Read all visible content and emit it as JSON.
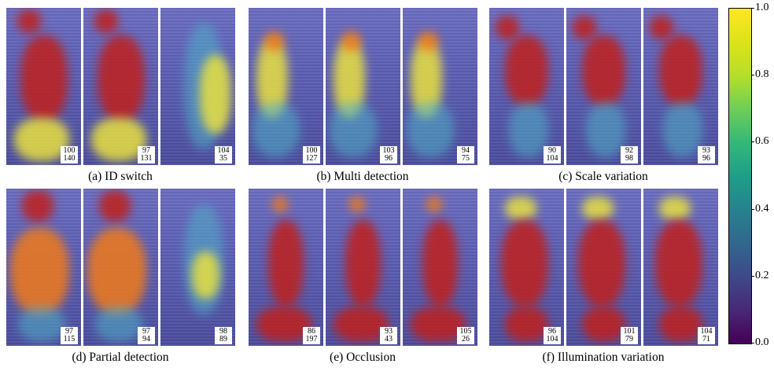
{
  "panels": [
    {
      "caption": "(a) ID switch",
      "tags": [
        {
          "a": "100",
          "b": "140"
        },
        {
          "a": "97",
          "b": "131"
        },
        {
          "a": "104",
          "b": "35"
        }
      ]
    },
    {
      "caption": "(b) Multi detection",
      "tags": [
        {
          "a": "100",
          "b": "127"
        },
        {
          "a": "103",
          "b": "96"
        },
        {
          "a": "94",
          "b": "75"
        }
      ]
    },
    {
      "caption": "(c) Scale variation",
      "tags": [
        {
          "a": "90",
          "b": "104"
        },
        {
          "a": "92",
          "b": "98"
        },
        {
          "a": "93",
          "b": "96"
        }
      ]
    },
    {
      "caption": "(d) Partial detection",
      "tags": [
        {
          "a": "97",
          "b": "115"
        },
        {
          "a": "97",
          "b": "94"
        },
        {
          "a": "98",
          "b": "89"
        }
      ]
    },
    {
      "caption": "(e) Occlusion",
      "tags": [
        {
          "a": "86",
          "b": "197"
        },
        {
          "a": "93",
          "b": "43"
        },
        {
          "a": "105",
          "b": "26"
        }
      ]
    },
    {
      "caption": "(f) Illumination variation",
      "tags": [
        {
          "a": "96",
          "b": "104"
        },
        {
          "a": "101",
          "b": "79"
        },
        {
          "a": "104",
          "b": "71"
        }
      ]
    }
  ],
  "colorbar": {
    "ticks": [
      "1.0",
      "0.8",
      "0.6",
      "0.4",
      "0.2",
      "0.0"
    ],
    "colormap": "viridis",
    "colors": [
      "#440154",
      "#3e4989",
      "#26828e",
      "#35b779",
      "#b5de2b",
      "#fde725"
    ]
  },
  "heat_colors": {
    "hot": "#c0201c",
    "warm": "#f07a1a",
    "mid": "#e8e040",
    "cool": "#4fb0c8"
  }
}
